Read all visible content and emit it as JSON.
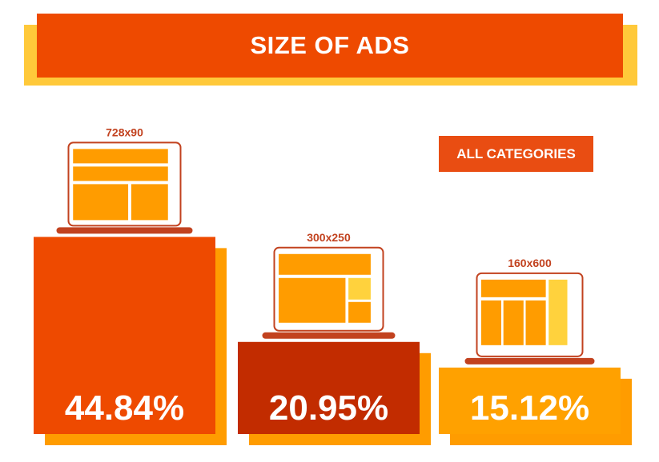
{
  "title": "SIZE OF ADS",
  "badge": "ALL CATEGORIES",
  "colors": {
    "title": "#ee4a00",
    "title_shadow": "#ffc93a",
    "badge": "#e94d12",
    "bar_shadow": "#ff9c00",
    "laptop_outline": "#c2421f",
    "ad_primary": "#ff9c00",
    "ad_highlight": "#ffd23d"
  },
  "chart_data": {
    "type": "bar",
    "categories": [
      "728x90",
      "300x250",
      "160x600"
    ],
    "values": [
      44.84,
      20.95,
      15.12
    ],
    "value_labels": [
      "44.84%",
      "20.95%",
      "15.12%"
    ],
    "colors": [
      "#ee4a00",
      "#c22c00",
      "#ffa100"
    ],
    "unit": "%"
  }
}
